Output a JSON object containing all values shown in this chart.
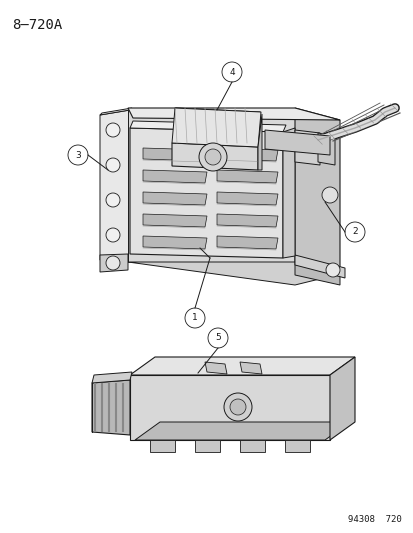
{
  "title": "8–720A",
  "footer": "94308  720",
  "bg_color": "#ffffff",
  "fg_color": "#1a1a1a",
  "title_fontsize": 10,
  "footer_fontsize": 6.5,
  "callout_r": 0.013,
  "lw": 0.7,
  "ecu_face_color": "#e0e0e0",
  "ecu_side_color": "#c8c8c8",
  "ecu_top_color": "#ececec",
  "vent_color": "#b8b8b8",
  "hs_color": "#d0d0d0",
  "conn_color": "#d5d5d5",
  "board_color": "#d8d8d8",
  "board_top_color": "#e5e5e5",
  "board_side_color": "#c0c0c0"
}
